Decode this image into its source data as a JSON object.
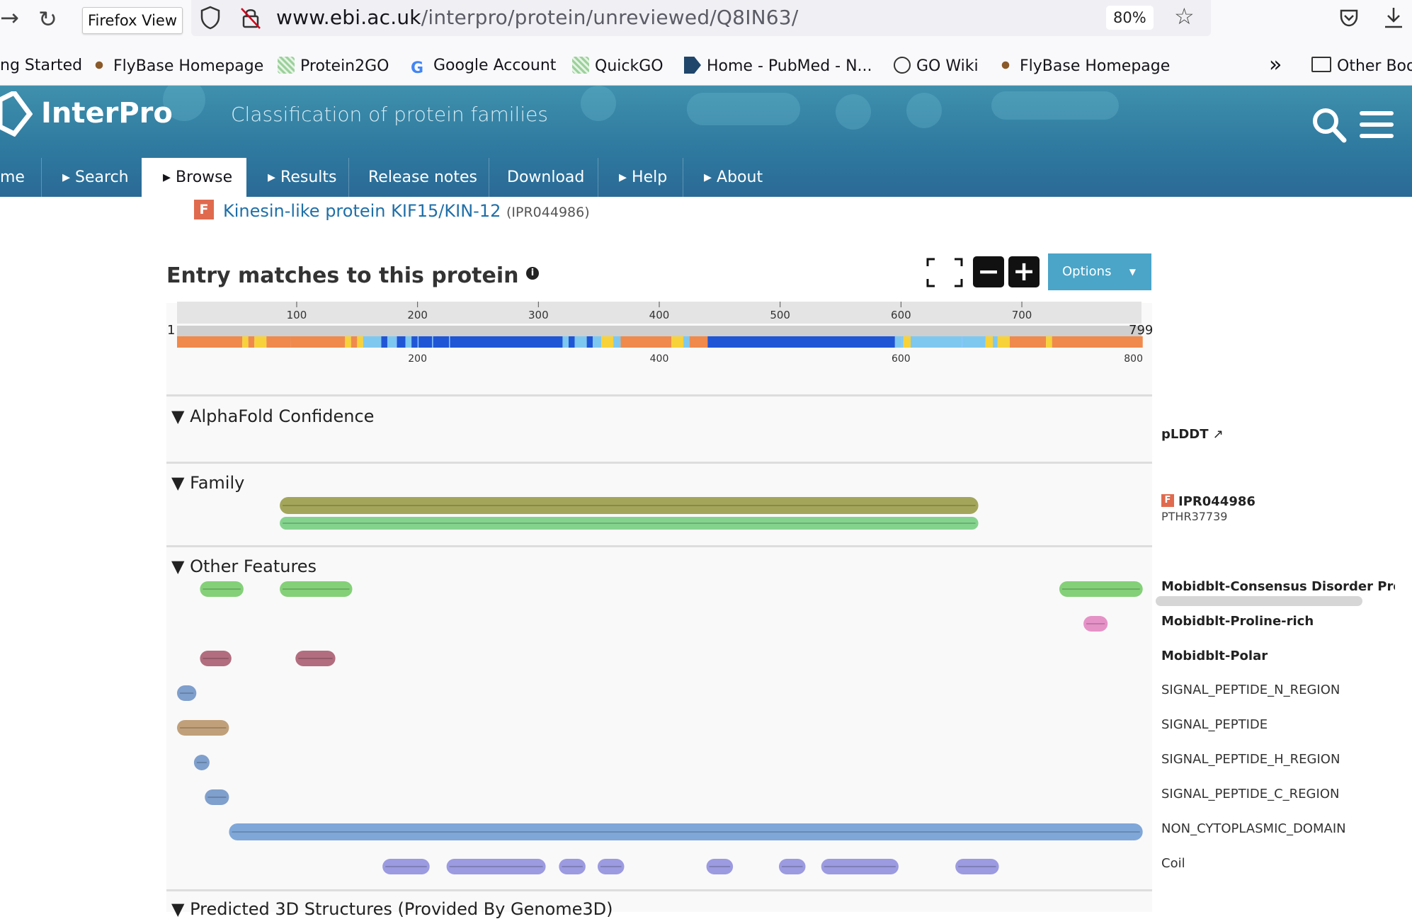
{
  "browser": {
    "firefox_view_label": "Firefox View",
    "url_host": "www.ebi.ac.uk",
    "url_path": "/interpro/protein/unreviewed/Q8IN63/",
    "zoom": "80%",
    "bookmarks": [
      "ng Started",
      "FlyBase Homepage",
      "Protein2GO",
      "Google Account",
      "QuickGO",
      "Home - PubMed - N...",
      "GO Wiki",
      "FlyBase Homepage",
      "Other Boo"
    ]
  },
  "site": {
    "logo": "InterPro",
    "tagline": "Classification of protein families",
    "menu": [
      "me",
      "Search",
      "Browse",
      "Results",
      "Release notes",
      "Download",
      "Help",
      "About"
    ],
    "active_menu": "Browse"
  },
  "entry": {
    "badge": "F",
    "name": "Kinesin-like protein KIF15/KIN-12",
    "accession": "(IPR044986)"
  },
  "viewer": {
    "title": "Entry matches to this protein",
    "options_label": "Options",
    "sequence_length": 799,
    "ruler_start": "1",
    "ruler_end": "799",
    "top_ticks": [
      100,
      200,
      300,
      400,
      500,
      600,
      700
    ],
    "bottom_ticks": [
      200,
      400,
      600,
      800
    ],
    "tracks": {
      "alphafold": {
        "header": "AlphaFold Confidence",
        "label": "pLDDT"
      },
      "family": {
        "header": "Family",
        "entry_badge": "F",
        "entry": "IPR044986",
        "member": "PTHR37739"
      },
      "other": {
        "header": "Other Features"
      },
      "next_header": "Predicted 3D Structures (Provided By Genome3D)"
    },
    "feature_labels": [
      "Mobidblt-Consensus Disorder Predi",
      "Mobidblt-Proline-rich",
      "Mobidblt-Polar",
      "SIGNAL_PEPTIDE_N_REGION",
      "SIGNAL_PEPTIDE",
      "SIGNAL_PEPTIDE_H_REGION",
      "SIGNAL_PEPTIDE_C_REGION",
      "NON_CYTOPLASMIC_DOMAIN",
      "Coil"
    ],
    "colors": {
      "very_high": "#1f56d6",
      "confident": "#7ec8f0",
      "low": "#f7d23b",
      "very_low": "#ef8a4c",
      "family": "#a3a55b",
      "panther": "#84d38d",
      "disorder": "#84d078",
      "proline": "#e592c7",
      "polar": "#b26d7e",
      "signal": "#7f9fcc",
      "signal_peptide": "#c0a07a",
      "noncyto": "#7fa7d8",
      "coil": "#9c9ae0"
    }
  }
}
